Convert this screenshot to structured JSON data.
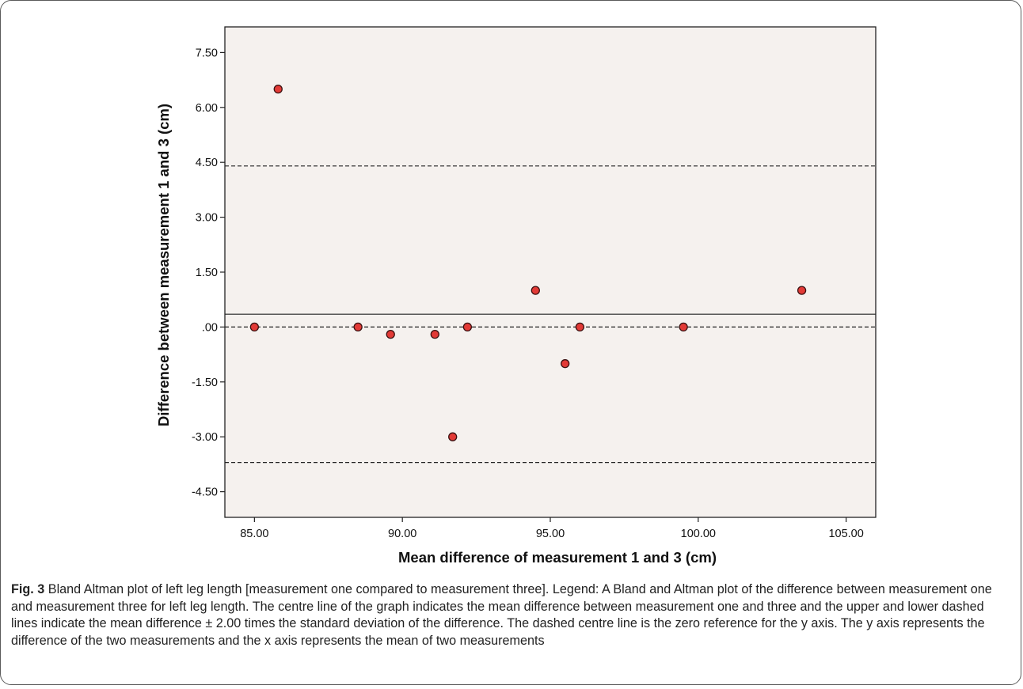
{
  "caption": {
    "label": "Fig. 3",
    "text": " Bland Altman plot of left leg length [measurement one compared to measurement three]. Legend: A Bland and Altman plot of the difference between measurement one and measurement three for left leg length. The centre line of the graph indicates the mean difference between measurement one and three and the upper and lower dashed lines indicate the mean difference ± 2.00 times the standard deviation of the difference. The dashed centre line is the zero reference for the y axis. The y axis represents the difference of the two measurements and the x axis represents the mean of two measurements"
  },
  "chart_data": {
    "type": "scatter",
    "xlabel": "Mean difference of measurement 1 and 3 (cm)",
    "ylabel": "Difference between measurement 1 and 3 (cm)",
    "xlim": [
      84,
      106
    ],
    "ylim": [
      -5.2,
      8.2
    ],
    "xticks": [
      85,
      90,
      95,
      100,
      105
    ],
    "xtick_labels": [
      "85.00",
      "90.00",
      "95.00",
      "100.00",
      "105.00"
    ],
    "yticks": [
      7.5,
      6,
      4.5,
      3,
      1.5,
      0,
      -1.5,
      -3,
      -4.5
    ],
    "ytick_labels": [
      "7.50",
      "6.00",
      "4.50",
      "3.00",
      "1.50",
      ".00",
      "-1.50",
      "-3.00",
      "-4.50"
    ],
    "points": [
      {
        "x": 85.0,
        "y": 0.0
      },
      {
        "x": 85.8,
        "y": 6.5
      },
      {
        "x": 88.5,
        "y": 0.0
      },
      {
        "x": 89.6,
        "y": -0.2
      },
      {
        "x": 91.1,
        "y": -0.2
      },
      {
        "x": 92.2,
        "y": 0.0
      },
      {
        "x": 91.7,
        "y": -3.0
      },
      {
        "x": 94.5,
        "y": 1.0
      },
      {
        "x": 95.5,
        "y": -1.0
      },
      {
        "x": 96.0,
        "y": 0.0
      },
      {
        "x": 99.5,
        "y": 0.0
      },
      {
        "x": 103.5,
        "y": 1.0
      }
    ],
    "reference_lines": [
      {
        "y": 4.4,
        "style": "dashed",
        "meaning": "upper limit"
      },
      {
        "y": 0.35,
        "style": "solid",
        "meaning": "mean difference"
      },
      {
        "y": 0.0,
        "style": "dashed",
        "meaning": "zero reference"
      },
      {
        "y": -3.7,
        "style": "dashed",
        "meaning": "lower limit"
      }
    ],
    "grid": false,
    "colors": {
      "plot_background": "#f5f1ee",
      "marker_fill": "#e23a36",
      "marker_stroke": "#3a1010"
    }
  }
}
